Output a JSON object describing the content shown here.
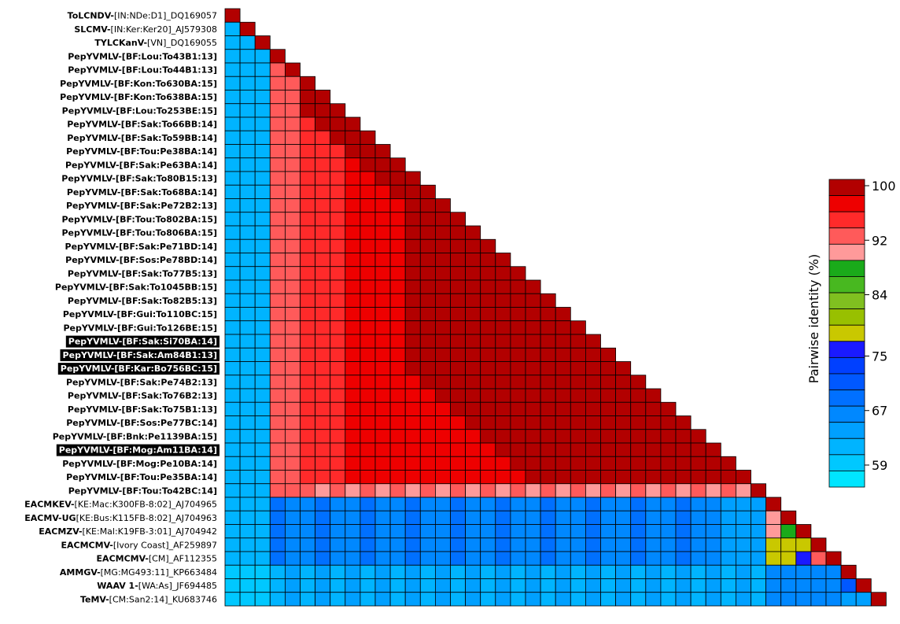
{
  "chart_data": {
    "type": "heatmap",
    "layout": "lower-triangular pairwise matrix",
    "labels": [
      {
        "prefix": "ToLCNDV-",
        "rest": "[IN:NDe:D1]_DQ169057",
        "bold": false,
        "highlight": false
      },
      {
        "prefix": "SLCMV-",
        "rest": "[IN:Ker:Ker20]_AJ579308",
        "bold": false,
        "highlight": false
      },
      {
        "prefix": "TYLCKanV-",
        "rest": "[VN]_DQ169055",
        "bold": false,
        "highlight": false
      },
      {
        "prefix": "PepYVMLV-",
        "rest": "[BF:Lou:To43B1:13]",
        "bold": true,
        "highlight": false
      },
      {
        "prefix": "PepYVMLV-",
        "rest": "[BF:Lou:To44B1:13]",
        "bold": true,
        "highlight": false
      },
      {
        "prefix": "PepYVMLV-",
        "rest": "[BF:Kon:To630BA:15]",
        "bold": true,
        "highlight": false
      },
      {
        "prefix": "PepYVMLV-",
        "rest": "[BF:Kon:To638BA:15]",
        "bold": true,
        "highlight": false
      },
      {
        "prefix": "PepYVMLV-",
        "rest": "[BF:Lou:To253BE:15]",
        "bold": true,
        "highlight": false
      },
      {
        "prefix": "PepYVMLV-",
        "rest": "[BF:Sak:To66BB:14]",
        "bold": true,
        "highlight": false
      },
      {
        "prefix": "PepYVMLV-",
        "rest": "[BF:Sak:To59BB:14]",
        "bold": true,
        "highlight": false
      },
      {
        "prefix": "PepYVMLV-",
        "rest": "[BF:Tou:Pe38BA:14]",
        "bold": true,
        "highlight": false
      },
      {
        "prefix": "PepYVMLV-",
        "rest": "[BF:Sak:Pe63BA:14]",
        "bold": true,
        "highlight": false
      },
      {
        "prefix": "PepYVMLV-",
        "rest": "[BF:Sak:To80B15:13]",
        "bold": true,
        "highlight": false
      },
      {
        "prefix": "PepYVMLV-",
        "rest": "[BF:Sak:To68BA:14]",
        "bold": true,
        "highlight": false
      },
      {
        "prefix": "PepYVMLV-",
        "rest": "[BF:Sak:Pe72B2:13]",
        "bold": true,
        "highlight": false
      },
      {
        "prefix": "PepYVMLV-",
        "rest": "[BF:Tou:To802BA:15]",
        "bold": true,
        "highlight": false
      },
      {
        "prefix": "PepYVMLV-",
        "rest": "[BF:Tou:To806BA:15]",
        "bold": true,
        "highlight": false
      },
      {
        "prefix": "PepYVMLV-",
        "rest": "[BF:Sak:Pe71BD:14]",
        "bold": true,
        "highlight": false
      },
      {
        "prefix": "PepYVMLV-",
        "rest": "[BF:Sos:Pe78BD:14]",
        "bold": true,
        "highlight": false
      },
      {
        "prefix": "PepYVMLV-",
        "rest": "[BF:Sak:To77B5:13]",
        "bold": true,
        "highlight": false
      },
      {
        "prefix": "PepYVMLV-",
        "rest": "[BF:Sak:To1045BB:15]",
        "bold": true,
        "highlight": false
      },
      {
        "prefix": "PepYVMLV-",
        "rest": "[BF:Sak:To82B5:13]",
        "bold": true,
        "highlight": false
      },
      {
        "prefix": "PepYVMLV-",
        "rest": "[BF:Gui:To110BC:15]",
        "bold": true,
        "highlight": false
      },
      {
        "prefix": "PepYVMLV-",
        "rest": "[BF:Gui:To126BE:15]",
        "bold": true,
        "highlight": false
      },
      {
        "prefix": "PepYVMLV-",
        "rest": "[BF:Sak:Si70BA:14]",
        "bold": true,
        "highlight": true
      },
      {
        "prefix": "PepYVMLV-",
        "rest": "[BF:Sak:Am84B1:13]",
        "bold": true,
        "highlight": true
      },
      {
        "prefix": "PepYVMLV-",
        "rest": "[BF:Kar:Bo756BC:15]",
        "bold": true,
        "highlight": true
      },
      {
        "prefix": "PepYVMLV-",
        "rest": "[BF:Sak:Pe74B2:13]",
        "bold": true,
        "highlight": false
      },
      {
        "prefix": "PepYVMLV-",
        "rest": "[BF:Sak:To76B2:13]",
        "bold": true,
        "highlight": false
      },
      {
        "prefix": "PepYVMLV-",
        "rest": "[BF:Sak:To75B1:13]",
        "bold": true,
        "highlight": false
      },
      {
        "prefix": "PepYVMLV-",
        "rest": "[BF:Sos:Pe77BC:14]",
        "bold": true,
        "highlight": false
      },
      {
        "prefix": "PepYVMLV-",
        "rest": "[BF:Bnk:Pe1139BA:15]",
        "bold": true,
        "highlight": false
      },
      {
        "prefix": "PepYVMLV-",
        "rest": "[BF:Mog:Am11BA:14]",
        "bold": true,
        "highlight": true
      },
      {
        "prefix": "PepYVMLV-",
        "rest": "[BF:Mog:Pe10BA:14]",
        "bold": true,
        "highlight": false
      },
      {
        "prefix": "PepYVMLV-",
        "rest": "[BF:Tou:Pe35BA:14]",
        "bold": true,
        "highlight": false
      },
      {
        "prefix": "PepYVMLV-",
        "rest": "[BF:Tou:To42BC:14]",
        "bold": true,
        "highlight": false
      },
      {
        "prefix": "EACMKEV-",
        "rest": "[KE:Mac:K300FB-8:02]_AJ704965",
        "bold": false,
        "highlight": false
      },
      {
        "prefix": "EACMV-UG",
        "rest": "[KE:Bus:K115FB-8:02]_AJ704963",
        "bold": false,
        "highlight": false
      },
      {
        "prefix": "EACMZV-",
        "rest": "[KE:Mal:K19FB-3:01]_AJ704942",
        "bold": false,
        "highlight": false
      },
      {
        "prefix": "EACMCMV-",
        "rest": "[Ivory Coast]_AF259897",
        "bold": false,
        "highlight": false
      },
      {
        "prefix": "EACMCMV-",
        "rest": "[CM]_AF112355",
        "bold": false,
        "highlight": false
      },
      {
        "prefix": "AMMGV-",
        "rest": "[MG:MG493:11]_KP663484",
        "bold": false,
        "highlight": false
      },
      {
        "prefix": "WAAV 1-",
        "rest": "[WA:As]_JF694485",
        "bold": false,
        "highlight": false
      },
      {
        "prefix": "TeMV-",
        "rest": "[CM:San2:14]_KU683746",
        "bold": false,
        "highlight": false
      }
    ],
    "color_classes": [
      {
        "color": "#00e5ff"
      },
      {
        "color": "#00c8ff"
      },
      {
        "color": "#00b4ff"
      },
      {
        "color": "#00a0ff"
      },
      {
        "color": "#0088ff"
      },
      {
        "color": "#0070ff"
      },
      {
        "color": "#0058ff"
      },
      {
        "color": "#0040ff"
      },
      {
        "color": "#1a1aff"
      },
      {
        "color": "#c9c800"
      },
      {
        "color": "#98c000"
      },
      {
        "color": "#80c020"
      },
      {
        "color": "#48b820"
      },
      {
        "color": "#1aaa1a"
      },
      {
        "color": "#ff9a9a"
      },
      {
        "color": "#ff5a5a"
      },
      {
        "color": "#ff2a2a"
      },
      {
        "color": "#ee0000"
      },
      {
        "color": "#b20000"
      }
    ],
    "colorbar": {
      "label": "Pairwise identity (%)",
      "ticks": [
        {
          "value": 100,
          "label": "100"
        },
        {
          "value": 92,
          "label": "92"
        },
        {
          "value": 84,
          "label": "84"
        },
        {
          "value": 75,
          "label": "75"
        },
        {
          "value": 67,
          "label": "67"
        },
        {
          "value": 59,
          "label": "59"
        }
      ]
    }
  }
}
